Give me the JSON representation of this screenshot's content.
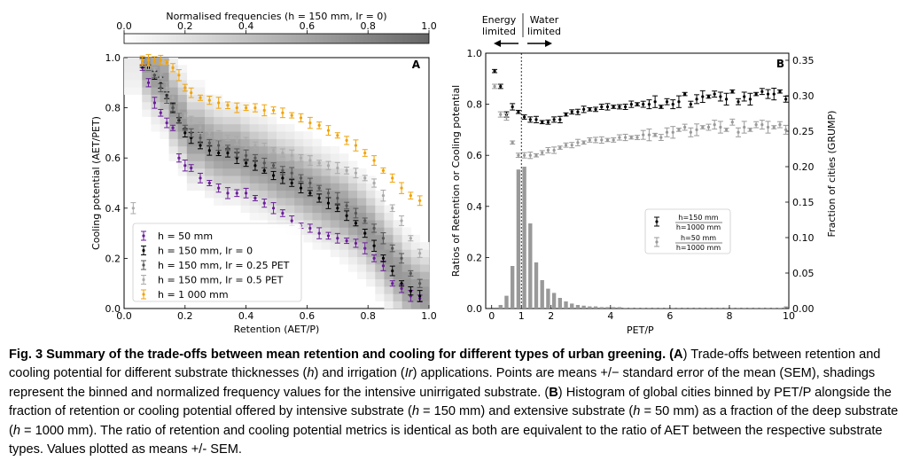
{
  "figure": {
    "colorbar": {
      "title": "Normalised frequencies (h = 150 mm, Ir = 0)",
      "ticks": [
        "0.0",
        "0.2",
        "0.4",
        "0.6",
        "0.8",
        "1.0"
      ]
    },
    "annotations": {
      "energy_line1": "Energy",
      "energy_line2": "limited",
      "water_line1": "Water",
      "water_line2": "limited"
    }
  },
  "chart_data": [
    {
      "type": "scatter",
      "panel_label": "A",
      "xlabel": "Retention (AET/P)",
      "ylabel": "Cooling potential (AET/PET)",
      "xlim": [
        0,
        1
      ],
      "ylim": [
        0,
        1
      ],
      "xticks": [
        "0.0",
        "0.2",
        "0.4",
        "0.6",
        "0.8",
        "1.0"
      ],
      "yticks": [
        "0.0",
        "0.2",
        "0.4",
        "0.6",
        "0.8",
        "1.0"
      ],
      "heatmap_note": "binned normalized frequencies, grayscale",
      "legend_position": "lower-left",
      "series": [
        {
          "name": "h = 50 mm",
          "color": "#6a1b9a",
          "x": [
            0.06,
            0.08,
            0.1,
            0.12,
            0.14,
            0.16,
            0.18,
            0.2,
            0.22,
            0.25,
            0.28,
            0.31,
            0.34,
            0.37,
            0.4,
            0.43,
            0.46,
            0.49,
            0.52,
            0.55,
            0.58,
            0.61,
            0.64,
            0.67,
            0.7,
            0.73,
            0.76,
            0.79,
            0.82,
            0.85,
            0.88,
            0.91,
            0.94,
            0.97
          ],
          "y": [
            0.96,
            0.9,
            0.82,
            0.78,
            0.74,
            0.72,
            0.6,
            0.57,
            0.56,
            0.52,
            0.5,
            0.48,
            0.46,
            0.46,
            0.46,
            0.44,
            0.42,
            0.4,
            0.38,
            0.35,
            0.33,
            0.32,
            0.3,
            0.29,
            0.28,
            0.27,
            0.26,
            0.24,
            0.2,
            0.17,
            0.1,
            0.08,
            0.05,
            0.04
          ]
        },
        {
          "name": "h = 150 mm, Ir = 0",
          "color": "#000000",
          "x": [
            0.06,
            0.08,
            0.1,
            0.12,
            0.14,
            0.16,
            0.18,
            0.2,
            0.22,
            0.25,
            0.28,
            0.31,
            0.34,
            0.37,
            0.4,
            0.43,
            0.46,
            0.49,
            0.52,
            0.55,
            0.58,
            0.61,
            0.64,
            0.67,
            0.7,
            0.73,
            0.76,
            0.79,
            0.82,
            0.85,
            0.88,
            0.91,
            0.94,
            0.97
          ],
          "y": [
            0.98,
            0.96,
            0.93,
            0.9,
            0.85,
            0.8,
            0.75,
            0.7,
            0.68,
            0.65,
            0.63,
            0.62,
            0.62,
            0.6,
            0.58,
            0.57,
            0.55,
            0.53,
            0.52,
            0.5,
            0.48,
            0.46,
            0.44,
            0.42,
            0.4,
            0.37,
            0.34,
            0.3,
            0.25,
            0.2,
            0.15,
            0.1,
            0.07,
            0.05
          ]
        },
        {
          "name": "h = 150 mm, Ir = 0.25 PET",
          "color": "#555555",
          "x": [
            0.06,
            0.08,
            0.1,
            0.12,
            0.14,
            0.16,
            0.18,
            0.2,
            0.22,
            0.25,
            0.28,
            0.31,
            0.34,
            0.37,
            0.4,
            0.43,
            0.46,
            0.49,
            0.52,
            0.55,
            0.58,
            0.61,
            0.64,
            0.67,
            0.7,
            0.73,
            0.76,
            0.79,
            0.82,
            0.85,
            0.88,
            0.91,
            0.94,
            0.97
          ],
          "y": [
            0.98,
            0.97,
            0.93,
            0.88,
            0.84,
            0.8,
            0.76,
            0.72,
            0.7,
            0.68,
            0.66,
            0.65,
            0.64,
            0.62,
            0.61,
            0.6,
            0.58,
            0.57,
            0.55,
            0.54,
            0.52,
            0.5,
            0.48,
            0.46,
            0.44,
            0.41,
            0.38,
            0.35,
            0.32,
            0.28,
            0.24,
            0.2,
            0.14,
            0.1
          ]
        },
        {
          "name": "h = 150 mm, Ir = 0.5 PET",
          "color": "#aaaaaa",
          "x": [
            0.03,
            0.06,
            0.08,
            0.1,
            0.12,
            0.14,
            0.16,
            0.18,
            0.2,
            0.22,
            0.25,
            0.28,
            0.31,
            0.34,
            0.37,
            0.4,
            0.43,
            0.46,
            0.49,
            0.52,
            0.55,
            0.58,
            0.61,
            0.64,
            0.67,
            0.7,
            0.73,
            0.76,
            0.79,
            0.82,
            0.85,
            0.88,
            0.91,
            0.94,
            0.97
          ],
          "y": [
            0.4,
            0.98,
            0.97,
            0.95,
            0.92,
            0.88,
            0.84,
            0.8,
            0.77,
            0.75,
            0.72,
            0.7,
            0.69,
            0.68,
            0.67,
            0.66,
            0.65,
            0.64,
            0.63,
            0.62,
            0.61,
            0.6,
            0.59,
            0.58,
            0.57,
            0.56,
            0.55,
            0.54,
            0.52,
            0.5,
            0.45,
            0.4,
            0.35,
            0.28,
            0.22
          ]
        },
        {
          "name": "h = 1 000 mm",
          "color": "#f0a30a",
          "x": [
            0.06,
            0.08,
            0.1,
            0.12,
            0.14,
            0.16,
            0.18,
            0.2,
            0.22,
            0.25,
            0.28,
            0.31,
            0.34,
            0.37,
            0.4,
            0.43,
            0.46,
            0.49,
            0.52,
            0.55,
            0.58,
            0.61,
            0.64,
            0.67,
            0.7,
            0.73,
            0.76,
            0.79,
            0.82,
            0.85,
            0.88,
            0.91,
            0.94,
            0.97
          ],
          "y": [
            0.99,
            0.99,
            0.99,
            0.99,
            0.98,
            0.96,
            0.93,
            0.88,
            0.86,
            0.84,
            0.83,
            0.82,
            0.81,
            0.8,
            0.8,
            0.8,
            0.79,
            0.79,
            0.78,
            0.77,
            0.76,
            0.74,
            0.73,
            0.71,
            0.69,
            0.67,
            0.65,
            0.62,
            0.59,
            0.55,
            0.52,
            0.48,
            0.45,
            0.43
          ]
        }
      ]
    },
    {
      "type": "bar",
      "panel_label": "B",
      "xlabel": "PET/P",
      "ylabel": "Ratios of Retention or Cooling potential",
      "y2label": "Fraction of cities (GRUMP)",
      "xlim": [
        -0.2,
        10
      ],
      "ylim": [
        0,
        1
      ],
      "y2lim": [
        0,
        0.36
      ],
      "xticks": [
        "0",
        "1",
        "2",
        "4",
        "6",
        "8",
        "10"
      ],
      "yticks": [
        "0.0",
        "0.2",
        "0.4",
        "0.6",
        "0.8",
        "1.0"
      ],
      "y2ticks": [
        "0.00",
        "0.05",
        "0.10",
        "0.15",
        "0.20",
        "0.25",
        "0.30",
        "0.35"
      ],
      "vline_x": 1,
      "legend_position": "center-right",
      "histogram": {
        "x": [
          0.1,
          0.3,
          0.5,
          0.7,
          0.9,
          1.1,
          1.3,
          1.5,
          1.7,
          1.9,
          2.1,
          2.3,
          2.5,
          2.7,
          2.9,
          3.1,
          3.3,
          3.5,
          3.7,
          3.9,
          4.1,
          4.3,
          4.5,
          4.7,
          4.9,
          5.1,
          5.3,
          5.5,
          5.7,
          5.9,
          6.1,
          6.3,
          6.5,
          6.7,
          6.9,
          7.1,
          7.3,
          7.5,
          7.7,
          7.9,
          8.1,
          8.3,
          8.5,
          8.7,
          8.9,
          9.1,
          9.3,
          9.5,
          9.7,
          9.9
        ],
        "values": [
          0.0,
          0.005,
          0.018,
          0.06,
          0.196,
          0.2,
          0.12,
          0.065,
          0.04,
          0.028,
          0.022,
          0.015,
          0.01,
          0.007,
          0.005,
          0.004,
          0.003,
          0.003,
          0.002,
          0.002,
          0.002,
          0.002,
          0.001,
          0.001,
          0.001,
          0.001,
          0.001,
          0.001,
          0.001,
          0.001,
          0.001,
          0.001,
          0.001,
          0.001,
          0.001,
          0.001,
          0.001,
          0.001,
          0.001,
          0.001,
          0.001,
          0.001,
          0.001,
          0.001,
          0.001,
          0.001,
          0.001,
          0.001,
          0.001,
          0.003
        ]
      },
      "legend_entries": [
        {
          "num": "h=150 mm",
          "den": "h=1000 mm",
          "color": "#000000"
        },
        {
          "num": "h=50 mm",
          "den": "h=1000 mm",
          "color": "#999999"
        }
      ],
      "series": [
        {
          "name": "h=150 mm / h=1000 mm",
          "color": "#000000",
          "x": [
            0.1,
            0.3,
            0.5,
            0.7,
            0.9,
            1.1,
            1.3,
            1.5,
            1.7,
            1.9,
            2.1,
            2.3,
            2.5,
            2.7,
            2.9,
            3.1,
            3.3,
            3.5,
            3.7,
            3.9,
            4.1,
            4.3,
            4.5,
            4.7,
            4.9,
            5.1,
            5.3,
            5.5,
            5.7,
            5.9,
            6.1,
            6.3,
            6.5,
            6.7,
            6.9,
            7.1,
            7.3,
            7.5,
            7.7,
            7.9,
            8.1,
            8.3,
            8.5,
            8.7,
            8.9,
            9.1,
            9.3,
            9.5,
            9.7,
            9.9
          ],
          "y": [
            0.93,
            0.87,
            0.76,
            0.79,
            0.77,
            0.75,
            0.74,
            0.74,
            0.73,
            0.73,
            0.74,
            0.74,
            0.76,
            0.77,
            0.77,
            0.78,
            0.78,
            0.78,
            0.79,
            0.79,
            0.79,
            0.79,
            0.79,
            0.8,
            0.8,
            0.8,
            0.8,
            0.81,
            0.79,
            0.81,
            0.8,
            0.81,
            0.84,
            0.8,
            0.82,
            0.83,
            0.83,
            0.84,
            0.83,
            0.82,
            0.85,
            0.81,
            0.83,
            0.82,
            0.84,
            0.85,
            0.84,
            0.84,
            0.85,
            0.82
          ]
        },
        {
          "name": "h=50 mm / h=1000 mm",
          "color": "#999999",
          "x": [
            0.1,
            0.3,
            0.5,
            0.7,
            0.9,
            1.1,
            1.3,
            1.5,
            1.7,
            1.9,
            2.1,
            2.3,
            2.5,
            2.7,
            2.9,
            3.1,
            3.3,
            3.5,
            3.7,
            3.9,
            4.1,
            4.3,
            4.5,
            4.7,
            4.9,
            5.1,
            5.3,
            5.5,
            5.7,
            5.9,
            6.1,
            6.3,
            6.5,
            6.7,
            6.9,
            7.1,
            7.3,
            7.5,
            7.7,
            7.9,
            8.1,
            8.3,
            8.5,
            8.7,
            8.9,
            9.1,
            9.3,
            9.5,
            9.7,
            9.9
          ],
          "y": [
            0.87,
            0.76,
            0.75,
            0.65,
            0.6,
            0.6,
            0.6,
            0.6,
            0.61,
            0.62,
            0.62,
            0.63,
            0.64,
            0.64,
            0.65,
            0.65,
            0.66,
            0.66,
            0.66,
            0.66,
            0.66,
            0.67,
            0.67,
            0.67,
            0.67,
            0.68,
            0.68,
            0.68,
            0.67,
            0.69,
            0.69,
            0.7,
            0.71,
            0.69,
            0.7,
            0.71,
            0.71,
            0.72,
            0.71,
            0.7,
            0.73,
            0.69,
            0.71,
            0.7,
            0.72,
            0.72,
            0.71,
            0.71,
            0.72,
            0.7
          ]
        }
      ]
    }
  ],
  "caption": {
    "p1": "Fig. 3 Summary of the trade-offs between mean retention and cooling for different types of urban greening. (",
    "p2": "A",
    "p3": ") Trade-offs between retention and cooling potential for different substrate thicknesses (",
    "p4": "h",
    "p5": ") and irrigation (",
    "p6": "Ir",
    "p7": ") applications. Points are means +/−  standard error of the mean (SEM), shadings represent the binned and normalized frequency values for the intensive unirrigated substrate. (",
    "p8": "B",
    "p9": ") Histogram of global cities binned by PET/P alongside the fraction of retention or cooling potential offered by intensive substrate (",
    "p10": "h",
    "p11": " = 150 mm) and extensive substrate (",
    "p12": "h",
    "p13": " = 50 mm) as a fraction of the deep substrate (",
    "p14": "h",
    "p15": " = 1000 mm). The ratio of retention and cooling potential metrics is identical as both are equivalent to the ratio of AET between the respective substrate types. Values plotted as means +/- SEM."
  }
}
